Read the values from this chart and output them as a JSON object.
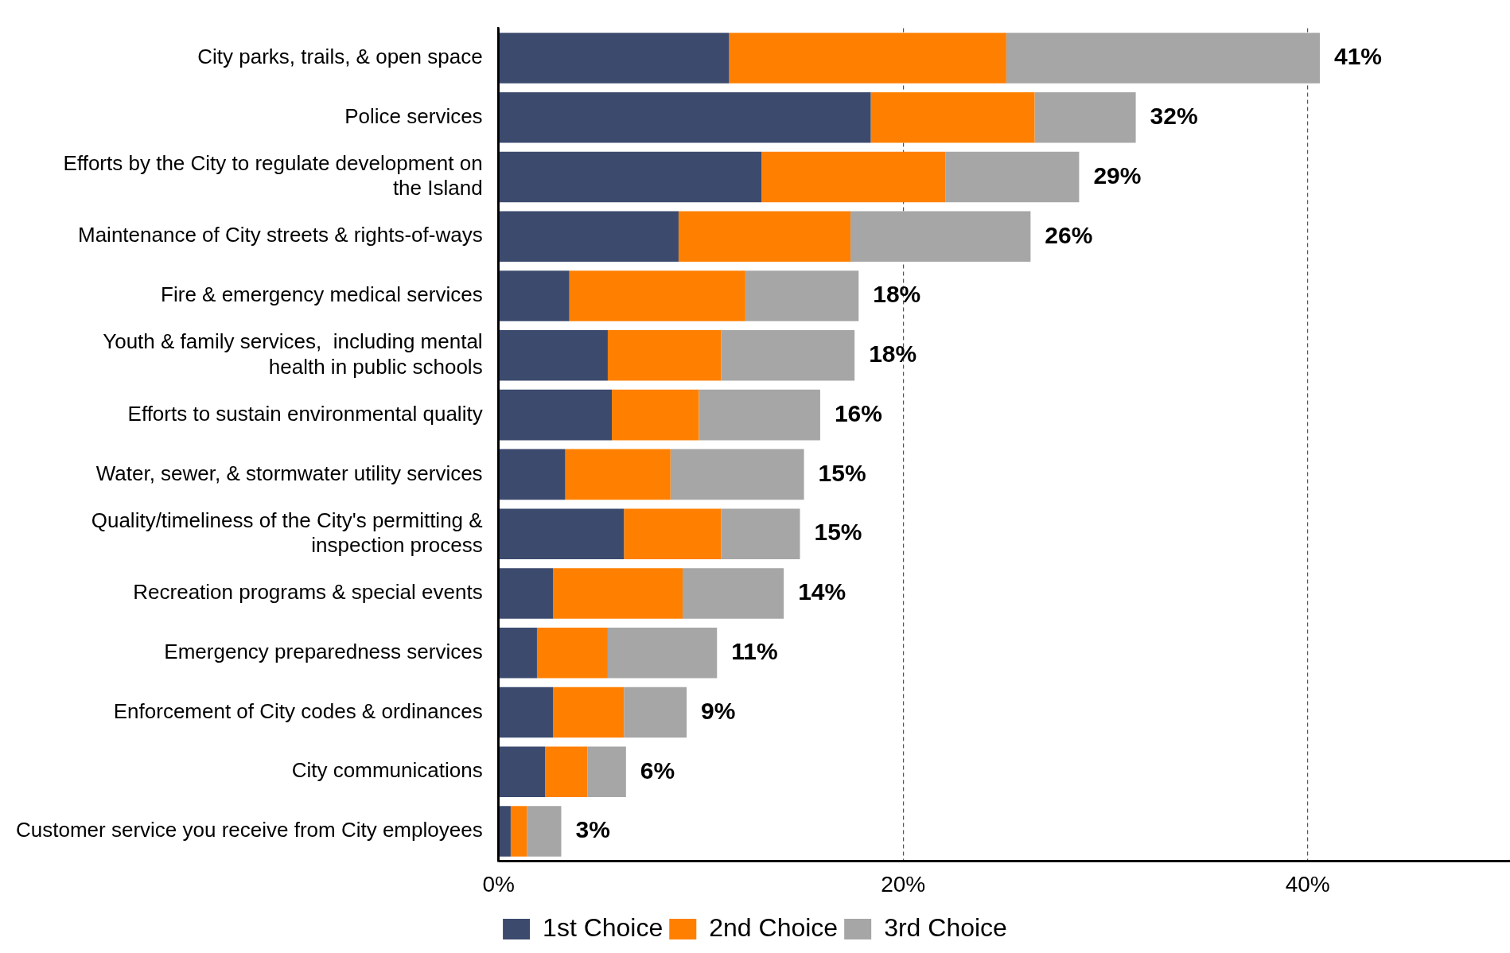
{
  "chart_data": {
    "type": "bar",
    "orientation": "horizontal",
    "stacked": true,
    "categories": [
      "City parks, trails, & open space",
      "Police services",
      "Efforts by the City to regulate development on the Island",
      "Maintenance of City streets & rights-of-ways",
      "Fire & emergency medical services",
      "Youth & family services,  including mental health in public schools",
      "Efforts to sustain environmental quality",
      "Water, sewer, & stormwater utility services",
      "Quality/timeliness of the City's permitting & inspection process",
      "Recreation programs & special events",
      "Emergency preparedness services",
      "Enforcement of City codes & ordinances",
      "City communications",
      "Customer service you receive from City employees"
    ],
    "series": [
      {
        "name": "1st Choice",
        "color": "#3c4a6e",
        "values": [
          11.4,
          18.4,
          13.0,
          8.9,
          3.5,
          5.4,
          5.6,
          3.3,
          6.2,
          2.7,
          1.9,
          2.7,
          2.3,
          0.6
        ]
      },
      {
        "name": "2nd Choice",
        "color": "#ff8000",
        "values": [
          13.7,
          8.1,
          9.1,
          8.5,
          8.7,
          5.6,
          4.3,
          5.2,
          4.8,
          6.4,
          3.5,
          3.5,
          2.1,
          0.8
        ]
      },
      {
        "name": "3rd Choice",
        "color": "#a6a6a6",
        "values": [
          15.5,
          5.0,
          6.6,
          8.9,
          5.6,
          6.6,
          6.0,
          6.6,
          3.9,
          5.0,
          5.4,
          3.1,
          1.9,
          1.7
        ]
      }
    ],
    "totals": [
      "41%",
      "32%",
      "29%",
      "26%",
      "18%",
      "18%",
      "16%",
      "15%",
      "15%",
      "14%",
      "11%",
      "9%",
      "6%",
      "3%"
    ],
    "xlim": [
      0,
      50
    ],
    "xticks": [
      {
        "value": 0,
        "label": "0%"
      },
      {
        "value": 20,
        "label": "20%"
      },
      {
        "value": 40,
        "label": "40%"
      }
    ],
    "grid": "x",
    "legend": "bottom"
  }
}
